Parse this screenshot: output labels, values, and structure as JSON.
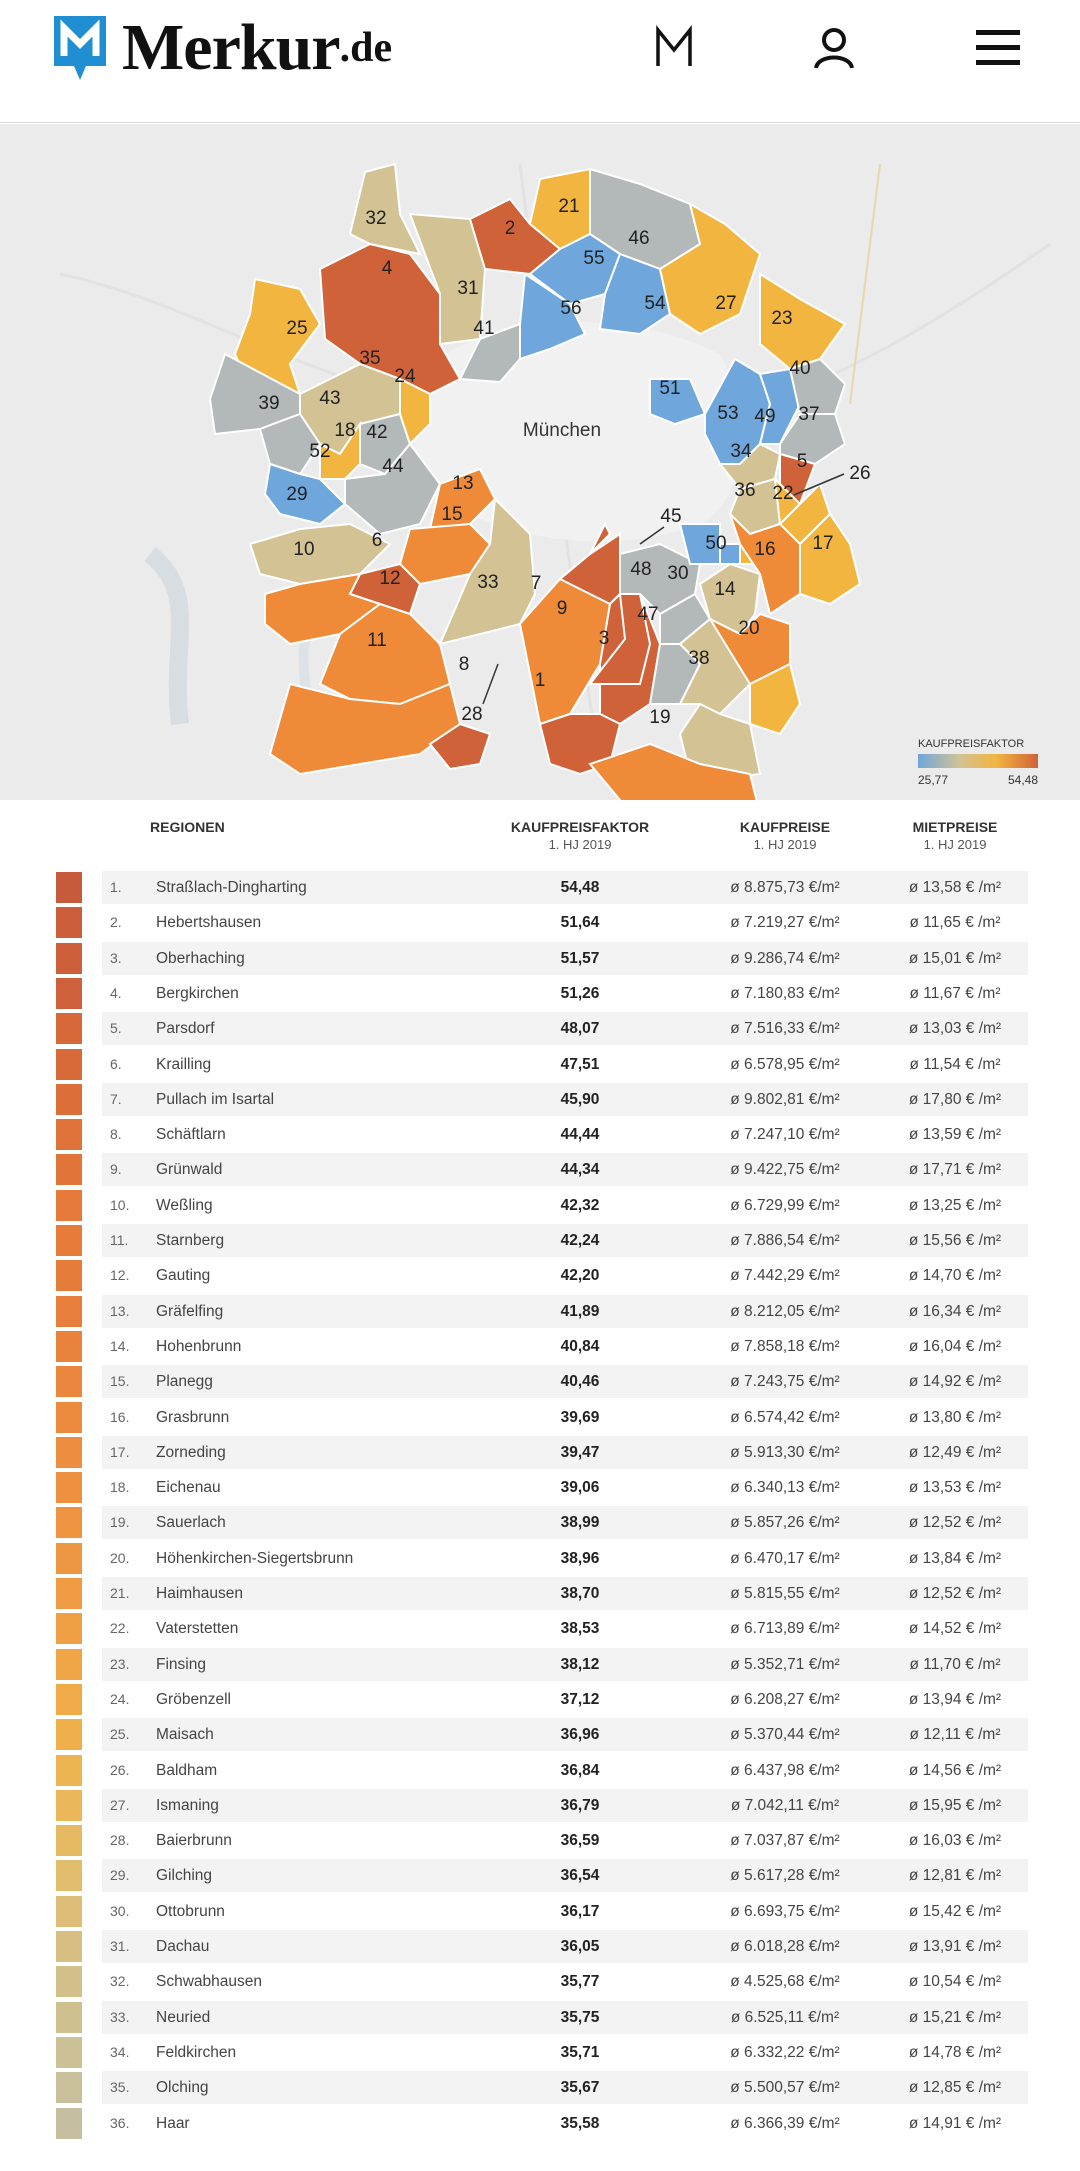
{
  "header": {
    "logo_text": "Merkur",
    "logo_tld": ".de",
    "icons": [
      "m-logo-icon",
      "user-icon",
      "menu-icon"
    ]
  },
  "map": {
    "city_label": "München",
    "legend_title": "KAUFPREISFAKTOR",
    "legend_min": "25,77",
    "legend_max": "54,48"
  },
  "table": {
    "headers": {
      "regionen": "REGIONEN",
      "faktor": "KAUFPREISFAKTOR",
      "faktor_sub": "1. HJ 2019",
      "kaufpreise": "KAUFPREISE",
      "kaufpreise_sub": "1. HJ 2019",
      "mietpreise": "MIETPREISE",
      "mietpreise_sub": "1. HJ 2019"
    },
    "rows": [
      {
        "rank": "1.",
        "name": "Straßlach-Dingharting",
        "faktor": "54,48",
        "kauf": "ø 8.875,73 €/m²",
        "miete": "ø 13,58 € /m²",
        "color": "#c85a3c"
      },
      {
        "rank": "2.",
        "name": "Hebertshausen",
        "faktor": "51,64",
        "kauf": "ø 7.219,27 €/m²",
        "miete": "ø 11,65 € /m²",
        "color": "#cc5e3b"
      },
      {
        "rank": "3.",
        "name": "Oberhaching",
        "faktor": "51,57",
        "kauf": "ø 9.286,74 €/m²",
        "miete": "ø 15,01 € /m²",
        "color": "#cd5f3b"
      },
      {
        "rank": "4.",
        "name": "Bergkirchen",
        "faktor": "51,26",
        "kauf": "ø 7.180,83 €/m²",
        "miete": "ø 11,67 € /m²",
        "color": "#ce613b"
      },
      {
        "rank": "5.",
        "name": "Parsdorf",
        "faktor": "48,07",
        "kauf": "ø 7.516,33 €/m²",
        "miete": "ø 13,03 € /m²",
        "color": "#d6683a"
      },
      {
        "rank": "6.",
        "name": "Krailling",
        "faktor": "47,51",
        "kauf": "ø 6.578,95 €/m²",
        "miete": "ø 11,54 € /m²",
        "color": "#d86a3a"
      },
      {
        "rank": "7.",
        "name": "Pullach im Isartal",
        "faktor": "45,90",
        "kauf": "ø 9.802,81 €/m²",
        "miete": "ø 17,80 € /m²",
        "color": "#dc6e39"
      },
      {
        "rank": "8.",
        "name": "Schäftlarn",
        "faktor": "44,44",
        "kauf": "ø 7.247,10 €/m²",
        "miete": "ø 13,59 € /m²",
        "color": "#e07339"
      },
      {
        "rank": "9.",
        "name": "Grünwald",
        "faktor": "44,34",
        "kauf": "ø 9.422,75 €/m²",
        "miete": "ø 17,71 € /m²",
        "color": "#e17439"
      },
      {
        "rank": "10.",
        "name": "Weßling",
        "faktor": "42,32",
        "kauf": "ø 6.729,99 €/m²",
        "miete": "ø 13,25 € /m²",
        "color": "#e57a3a"
      },
      {
        "rank": "11.",
        "name": "Starnberg",
        "faktor": "42,24",
        "kauf": "ø 7.886,54 €/m²",
        "miete": "ø 15,56 € /m²",
        "color": "#e67b3a"
      },
      {
        "rank": "12.",
        "name": "Gauting",
        "faktor": "42,20",
        "kauf": "ø 7.442,29 €/m²",
        "miete": "ø 14,70 € /m²",
        "color": "#e67c3a"
      },
      {
        "rank": "13.",
        "name": "Gräfelfing",
        "faktor": "41,89",
        "kauf": "ø 8.212,05 €/m²",
        "miete": "ø 16,34 € /m²",
        "color": "#e77e3b"
      },
      {
        "rank": "14.",
        "name": "Hohenbrunn",
        "faktor": "40,84",
        "kauf": "ø 7.858,18 €/m²",
        "miete": "ø 16,04 € /m²",
        "color": "#e9833c"
      },
      {
        "rank": "15.",
        "name": "Planegg",
        "faktor": "40,46",
        "kauf": "ø 7.243,75 €/m²",
        "miete": "ø 14,92 € /m²",
        "color": "#ea863d"
      },
      {
        "rank": "16.",
        "name": "Grasbrunn",
        "faktor": "39,69",
        "kauf": "ø 6.574,42 €/m²",
        "miete": "ø 13,80 € /m²",
        "color": "#ec8b3e"
      },
      {
        "rank": "17.",
        "name": "Zorneding",
        "faktor": "39,47",
        "kauf": "ø 5.913,30 €/m²",
        "miete": "ø 12,49 € /m²",
        "color": "#ec8d3f"
      },
      {
        "rank": "18.",
        "name": "Eichenau",
        "faktor": "39,06",
        "kauf": "ø 6.340,13 €/m²",
        "miete": "ø 13,53 € /m²",
        "color": "#ed9140"
      },
      {
        "rank": "19.",
        "name": "Sauerlach",
        "faktor": "38,99",
        "kauf": "ø 5.857,26 €/m²",
        "miete": "ø 12,52 € /m²",
        "color": "#ee9441"
      },
      {
        "rank": "20.",
        "name": "Höhenkirchen-Siegertsbrunn",
        "faktor": "38,96",
        "kauf": "ø 6.470,17 €/m²",
        "miete": "ø 13,84 € /m²",
        "color": "#ee9742"
      },
      {
        "rank": "21.",
        "name": "Haimhausen",
        "faktor": "38,70",
        "kauf": "ø 5.815,55 €/m²",
        "miete": "ø 12,52 € /m²",
        "color": "#ef9b43"
      },
      {
        "rank": "22.",
        "name": "Vaterstetten",
        "faktor": "38,53",
        "kauf": "ø 6.713,89 €/m²",
        "miete": "ø 14,52 € /m²",
        "color": "#f0a044"
      },
      {
        "rank": "23.",
        "name": "Finsing",
        "faktor": "38,12",
        "kauf": "ø 5.352,71 €/m²",
        "miete": "ø 11,70 € /m²",
        "color": "#f0a546"
      },
      {
        "rank": "24.",
        "name": "Gröbenzell",
        "faktor": "37,12",
        "kauf": "ø 6.208,27 €/m²",
        "miete": "ø 13,94 € /m²",
        "color": "#f0aa48"
      },
      {
        "rank": "25.",
        "name": "Maisach",
        "faktor": "36,96",
        "kauf": "ø 5.370,44 €/m²",
        "miete": "ø 12,11 € /m²",
        "color": "#efb04c"
      },
      {
        "rank": "26.",
        "name": "Baldham",
        "faktor": "36,84",
        "kauf": "ø 6.437,98 €/m²",
        "miete": "ø 14,56 € /m²",
        "color": "#edb452"
      },
      {
        "rank": "27.",
        "name": "Ismaning",
        "faktor": "36,79",
        "kauf": "ø 7.042,11 €/m²",
        "miete": "ø 15,95 € /m²",
        "color": "#eab85a"
      },
      {
        "rank": "28.",
        "name": "Baierbrunn",
        "faktor": "36,59",
        "kauf": "ø 7.037,87 €/m²",
        "miete": "ø 16,03 € /m²",
        "color": "#e6ba63"
      },
      {
        "rank": "29.",
        "name": "Gilching",
        "faktor": "36,54",
        "kauf": "ø 5.617,28 €/m²",
        "miete": "ø 12,81 € /m²",
        "color": "#e2bc6d"
      },
      {
        "rank": "30.",
        "name": "Ottobrunn",
        "faktor": "36,17",
        "kauf": "ø 6.693,75 €/m²",
        "miete": "ø 15,42 € /m²",
        "color": "#ddbd78"
      },
      {
        "rank": "31.",
        "name": "Dachau",
        "faktor": "36,05",
        "kauf": "ø 6.018,28 €/m²",
        "miete": "ø 13,91 € /m²",
        "color": "#d8be82"
      },
      {
        "rank": "32.",
        "name": "Schwabhausen",
        "faktor": "35,77",
        "kauf": "ø 4.525,68 €/m²",
        "miete": "ø 10,54 € /m²",
        "color": "#d3bf8a"
      },
      {
        "rank": "33.",
        "name": "Neuried",
        "faktor": "35,75",
        "kauf": "ø 6.525,11 €/m²",
        "miete": "ø 15,21 € /m²",
        "color": "#cfc090"
      },
      {
        "rank": "34.",
        "name": "Feldkirchen",
        "faktor": "35,71",
        "kauf": "ø 6.332,22 €/m²",
        "miete": "ø 14,78 € /m²",
        "color": "#ccc096"
      },
      {
        "rank": "35.",
        "name": "Olching",
        "faktor": "35,67",
        "kauf": "ø 5.500,57 €/m²",
        "miete": "ø 12,85 € /m²",
        "color": "#c9c09b"
      },
      {
        "rank": "36.",
        "name": "Haar",
        "faktor": "35,58",
        "kauf": "ø 6.366,39 €/m²",
        "miete": "ø 14,91 € /m²",
        "color": "#c6bf9f"
      }
    ]
  },
  "colors": {
    "blue": "#6fa7dc",
    "gray": "#b3b9b9",
    "beige": "#d2c294",
    "yellow": "#f2b540",
    "orange": "#ef8a38",
    "dark_orange": "#d0623a",
    "logo_blue": "#1f8fd1"
  }
}
